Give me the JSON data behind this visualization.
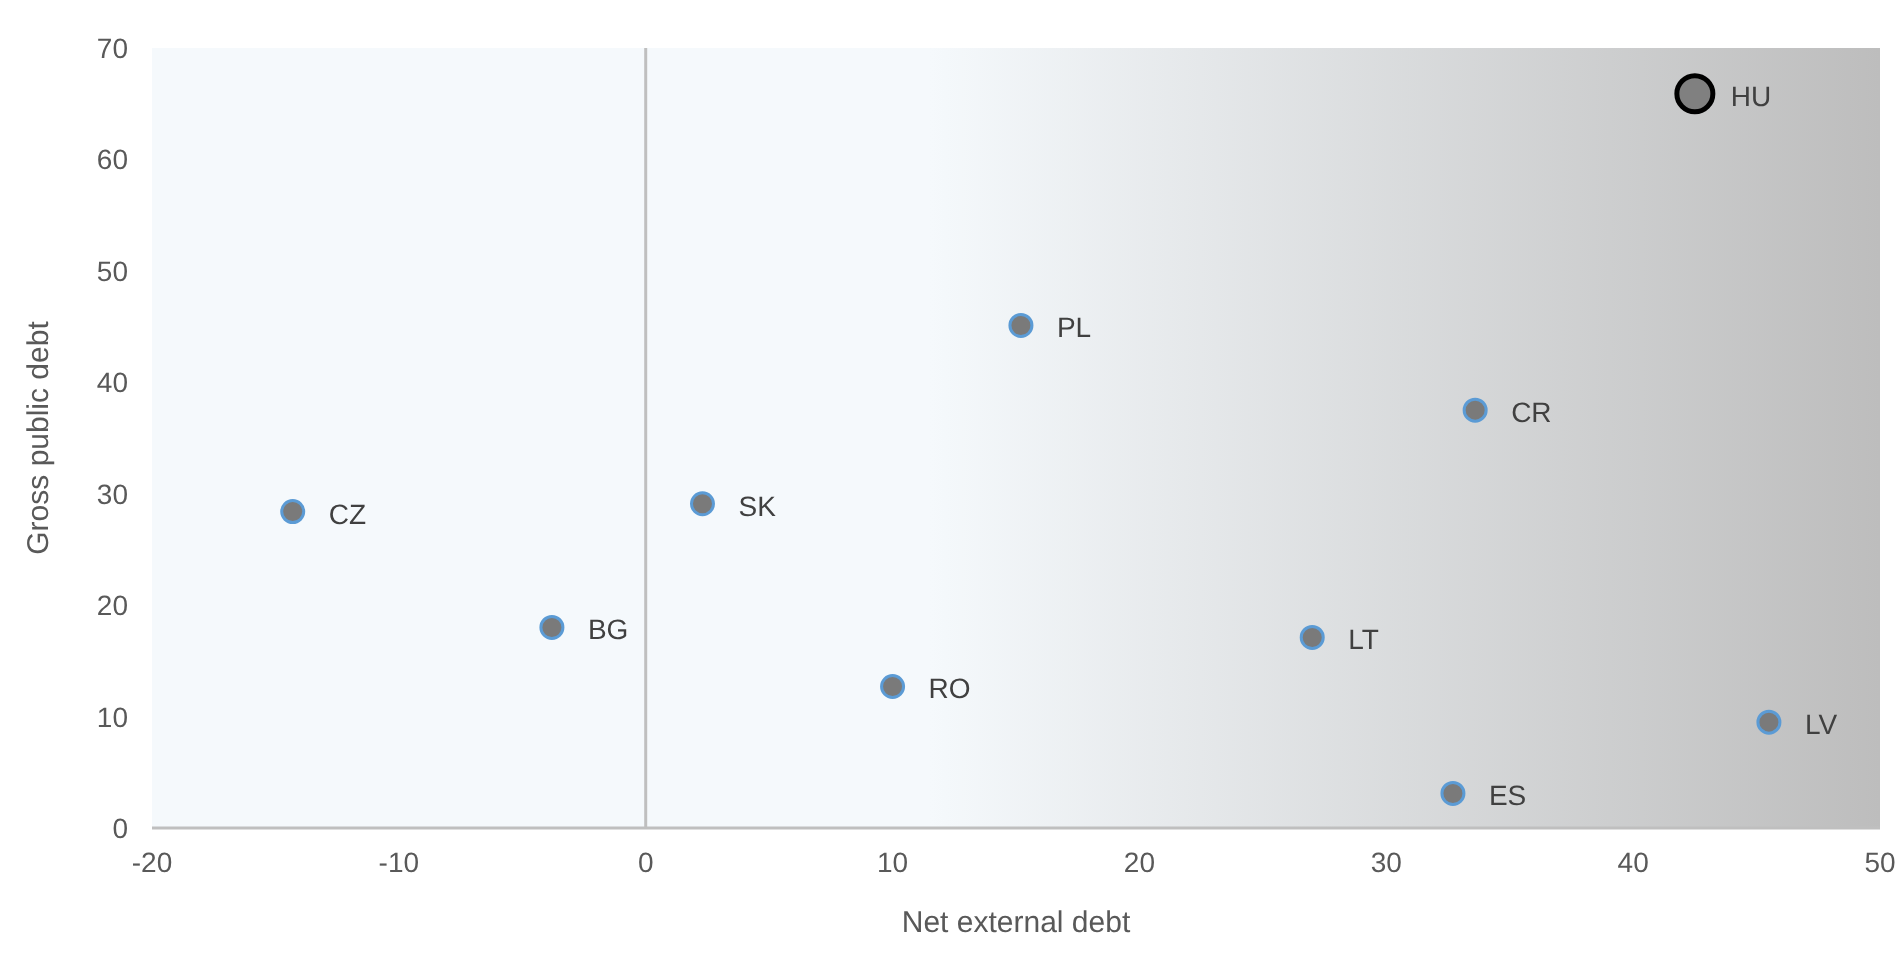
{
  "chart_data": {
    "type": "scatter",
    "xlabel": "Net external debt",
    "ylabel": "Gross public debt",
    "xlim": [
      -20,
      50
    ],
    "xticks": [
      -20,
      -10,
      0,
      10,
      20,
      30,
      40,
      50
    ],
    "ylim": [
      0,
      70
    ],
    "yticks": [
      0,
      10,
      20,
      30,
      40,
      50,
      60,
      70
    ],
    "grid": false,
    "marker": "circle",
    "series": [
      {
        "color": "#7a7a7a",
        "x": [
          -14.3,
          -3.8,
          2.3,
          10.0,
          15.2,
          27.0,
          33.6,
          32.7,
          45.5
        ],
        "values": [
          28.4,
          18.0,
          29.1,
          12.7,
          45.1,
          17.1,
          37.5,
          3.1,
          9.5
        ]
      },
      {
        "color": "#808080",
        "x": [
          42.5
        ],
        "values": [
          65.9
        ]
      }
    ],
    "ref_lines": [
      {
        "axis": "x",
        "value": 0,
        "color": "#bfbfbf"
      }
    ],
    "annotations": [
      {
        "text": "CZ",
        "x": -14.3,
        "y": 28.4
      },
      {
        "text": "BG",
        "x": -3.8,
        "y": 18.0
      },
      {
        "text": "SK",
        "x": 2.3,
        "y": 29.1
      },
      {
        "text": "RO",
        "x": 10.0,
        "y": 12.7
      },
      {
        "text": "PL",
        "x": 15.2,
        "y": 45.1
      },
      {
        "text": "LT",
        "x": 27.0,
        "y": 17.1
      },
      {
        "text": "CR",
        "x": 33.6,
        "y": 37.5
      },
      {
        "text": "ES",
        "x": 32.7,
        "y": 3.1
      },
      {
        "text": "LV",
        "x": 45.5,
        "y": 9.5
      },
      {
        "text": "HU",
        "x": 42.5,
        "y": 65.9
      }
    ]
  }
}
